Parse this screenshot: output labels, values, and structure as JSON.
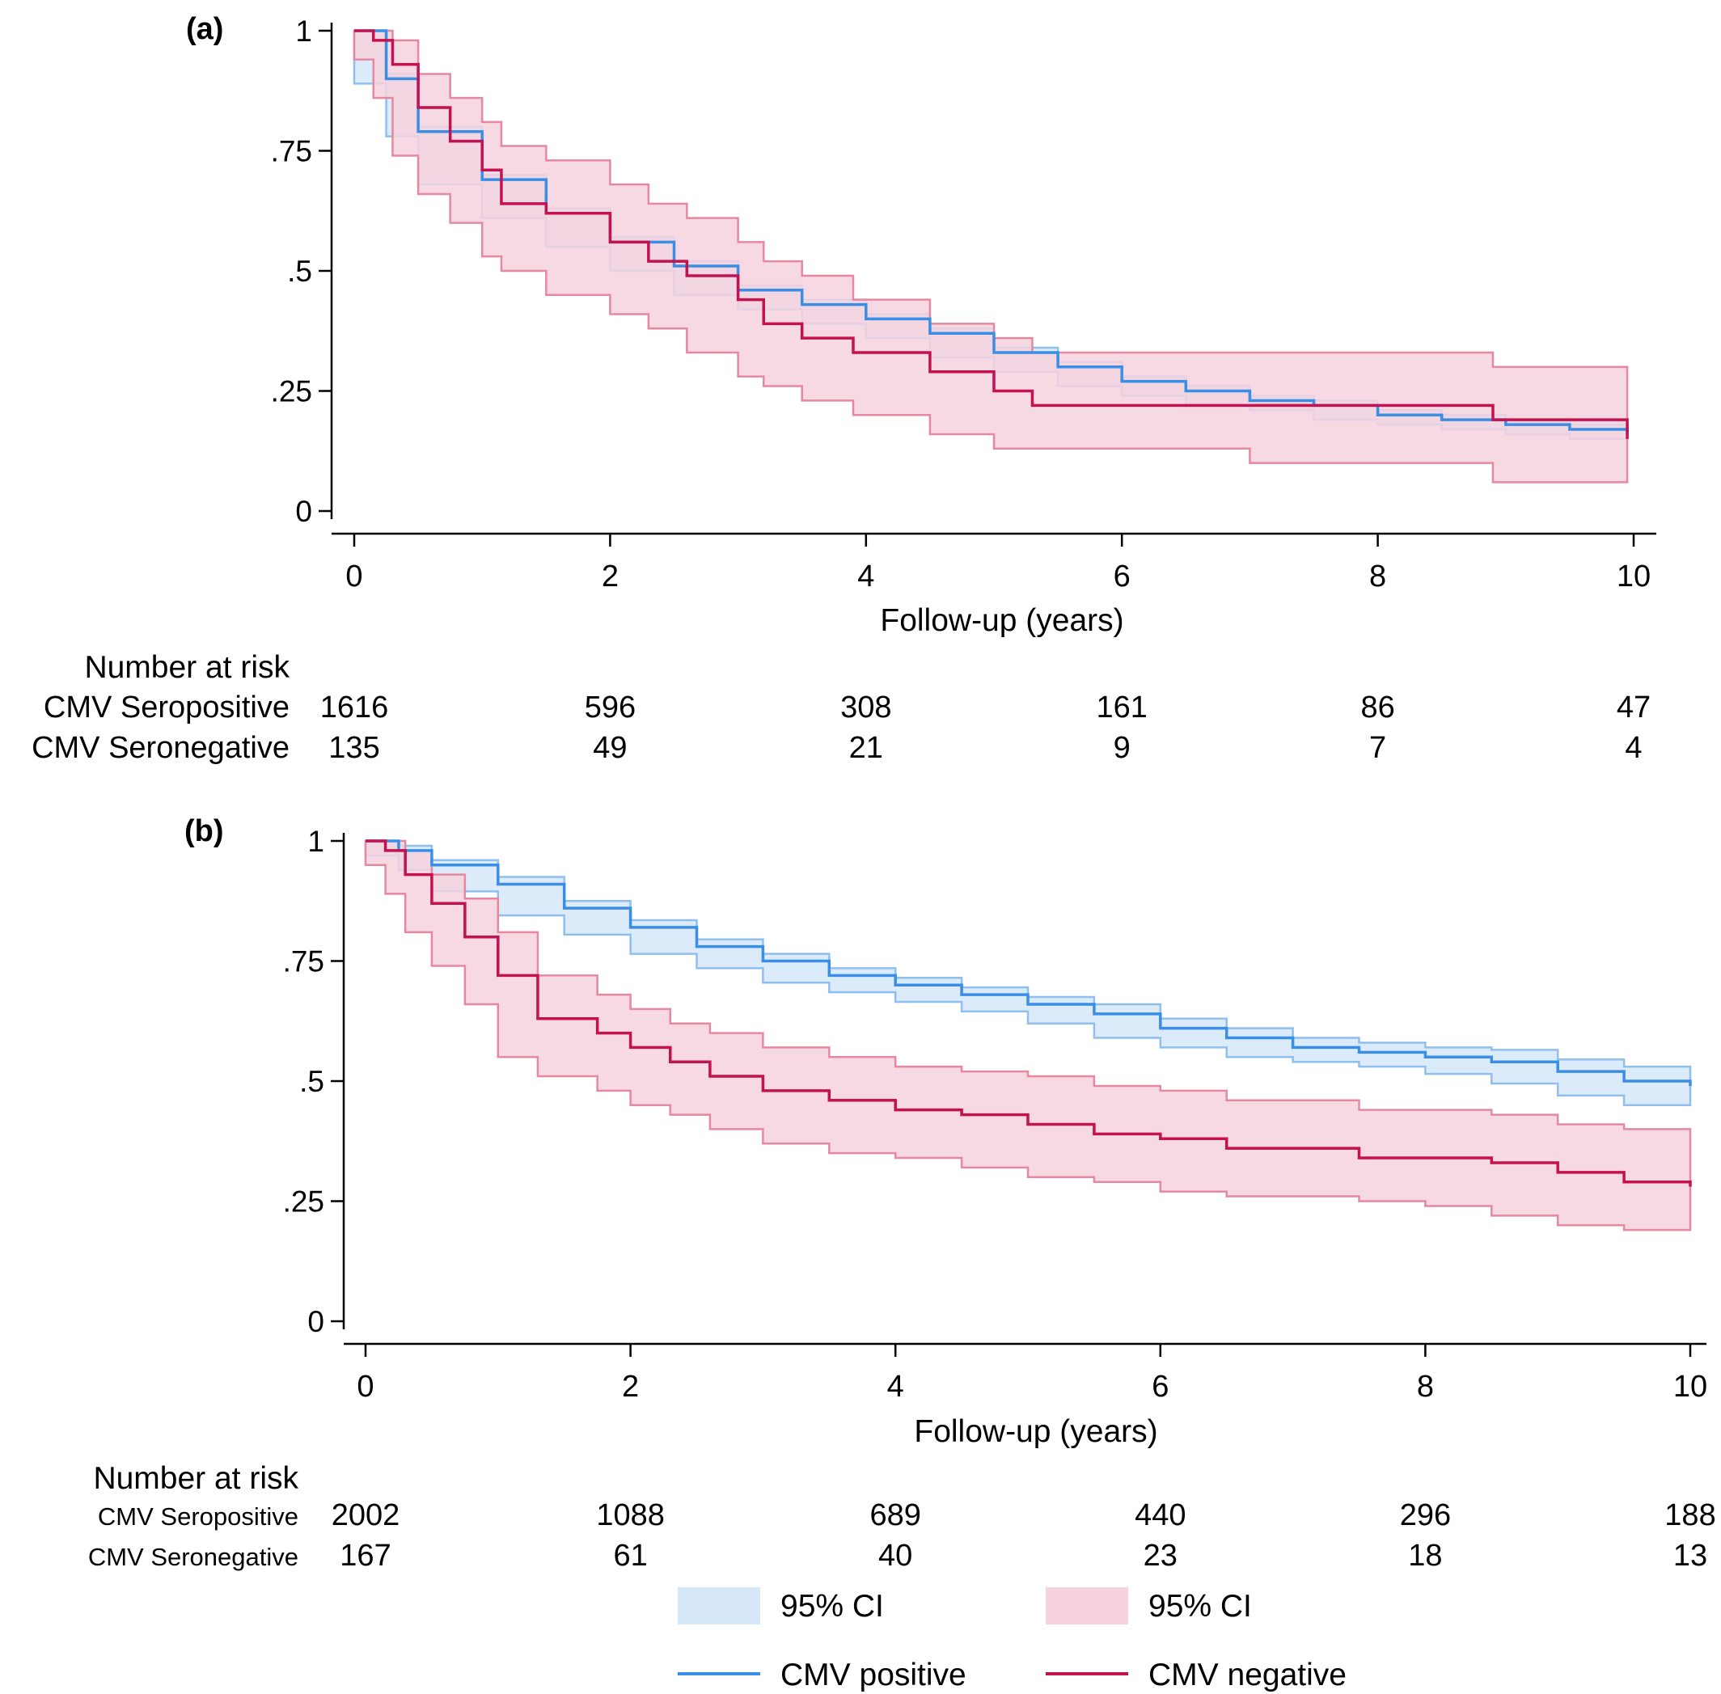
{
  "colors": {
    "pos_line": "#3a8ee6",
    "pos_ci_fill": "#d6e7f8",
    "pos_ci_edge": "#8fbfee",
    "neg_line": "#c4114f",
    "neg_ci_fill": "#f6d2de",
    "neg_ci_edge": "#e6889f"
  },
  "chart_data": [
    {
      "panel_label": "(a)",
      "type": "line",
      "xlabel": "Follow-up (years)",
      "xlim": [
        0,
        10
      ],
      "ylim": [
        0,
        1
      ],
      "xticks": [
        "0",
        "2",
        "4",
        "6",
        "8",
        "10"
      ],
      "yticks": [
        "0",
        ".25",
        ".5",
        ".75",
        "1"
      ],
      "risk_table": {
        "title": "Number at risk",
        "rows": [
          {
            "label": "CMV Seropositive",
            "values": [
              "1616",
              "596",
              "308",
              "161",
              "86",
              "47"
            ]
          },
          {
            "label": "CMV Seronegative",
            "values": [
              "135",
              "49",
              "21",
              "9",
              "7",
              "4"
            ]
          }
        ]
      },
      "series": [
        {
          "group": "positive",
          "x": [
            0,
            0.25,
            0.5,
            1.0,
            1.5,
            2.0,
            2.5,
            3.0,
            3.5,
            4.0,
            4.5,
            5.0,
            5.5,
            6.0,
            6.5,
            7.0,
            7.5,
            8.0,
            8.5,
            9.0,
            9.5,
            9.95
          ],
          "y": [
            1.0,
            0.9,
            0.79,
            0.69,
            0.62,
            0.56,
            0.51,
            0.46,
            0.43,
            0.4,
            0.37,
            0.33,
            0.3,
            0.27,
            0.25,
            0.23,
            0.22,
            0.2,
            0.19,
            0.18,
            0.17,
            0.16
          ],
          "ci_lower": [
            1.0,
            0.89,
            0.78,
            0.68,
            0.61,
            0.55,
            0.5,
            0.45,
            0.42,
            0.39,
            0.36,
            0.32,
            0.29,
            0.26,
            0.24,
            0.22,
            0.21,
            0.19,
            0.18,
            0.17,
            0.16,
            0.15
          ],
          "ci_upper": [
            1.0,
            0.91,
            0.8,
            0.7,
            0.63,
            0.57,
            0.52,
            0.47,
            0.44,
            0.41,
            0.38,
            0.34,
            0.31,
            0.28,
            0.26,
            0.24,
            0.23,
            0.21,
            0.2,
            0.19,
            0.18,
            0.17
          ]
        },
        {
          "group": "negative",
          "x": [
            0,
            0.15,
            0.3,
            0.5,
            0.75,
            1.0,
            1.15,
            1.5,
            2.0,
            2.3,
            2.6,
            3.0,
            3.2,
            3.5,
            3.9,
            4.5,
            5.0,
            5.3,
            7.0,
            8.9,
            9.95
          ],
          "y": [
            1.0,
            0.98,
            0.93,
            0.84,
            0.77,
            0.71,
            0.64,
            0.62,
            0.56,
            0.52,
            0.49,
            0.44,
            0.39,
            0.36,
            0.33,
            0.29,
            0.25,
            0.22,
            0.22,
            0.19,
            0.15
          ],
          "ci_lower": [
            1.0,
            0.94,
            0.86,
            0.74,
            0.66,
            0.6,
            0.53,
            0.5,
            0.45,
            0.41,
            0.38,
            0.33,
            0.28,
            0.26,
            0.23,
            0.2,
            0.16,
            0.13,
            0.13,
            0.1,
            0.06
          ],
          "ci_upper": [
            1.0,
            1.0,
            0.98,
            0.91,
            0.86,
            0.81,
            0.76,
            0.73,
            0.68,
            0.64,
            0.61,
            0.56,
            0.52,
            0.49,
            0.44,
            0.39,
            0.36,
            0.33,
            0.33,
            0.3,
            0.27
          ]
        }
      ]
    },
    {
      "panel_label": "(b)",
      "type": "line",
      "xlabel": "Follow-up (years)",
      "xlim": [
        0,
        10
      ],
      "ylim": [
        0,
        1
      ],
      "xticks": [
        "0",
        "2",
        "4",
        "6",
        "8",
        "10"
      ],
      "yticks": [
        "0",
        ".25",
        ".5",
        ".75",
        "1"
      ],
      "risk_table": {
        "title": "Number at risk",
        "rows": [
          {
            "label": "CMV Seropositive",
            "values": [
              "2002",
              "1088",
              "689",
              "440",
              "296",
              "188"
            ]
          },
          {
            "label": "CMV Seronegative",
            "values": [
              "167",
              "61",
              "40",
              "23",
              "18",
              "13"
            ]
          }
        ]
      },
      "series": [
        {
          "group": "positive",
          "x": [
            0,
            0.25,
            0.5,
            1.0,
            1.5,
            2.0,
            2.5,
            3.0,
            3.5,
            4.0,
            4.5,
            5.0,
            5.5,
            6.0,
            6.5,
            7.0,
            7.5,
            8.0,
            8.5,
            9.0,
            9.5,
            10.0
          ],
          "y": [
            1.0,
            0.98,
            0.95,
            0.91,
            0.86,
            0.82,
            0.78,
            0.75,
            0.72,
            0.7,
            0.68,
            0.66,
            0.64,
            0.61,
            0.59,
            0.57,
            0.56,
            0.55,
            0.54,
            0.52,
            0.5,
            0.49
          ],
          "ci_lower": [
            1.0,
            0.97,
            0.94,
            0.895,
            0.845,
            0.805,
            0.765,
            0.735,
            0.705,
            0.685,
            0.665,
            0.645,
            0.62,
            0.59,
            0.57,
            0.55,
            0.54,
            0.53,
            0.515,
            0.495,
            0.47,
            0.45
          ],
          "ci_upper": [
            1.0,
            0.99,
            0.96,
            0.925,
            0.875,
            0.835,
            0.795,
            0.765,
            0.735,
            0.715,
            0.695,
            0.675,
            0.66,
            0.63,
            0.61,
            0.59,
            0.58,
            0.57,
            0.565,
            0.545,
            0.53,
            0.52
          ]
        },
        {
          "group": "negative",
          "x": [
            0,
            0.15,
            0.3,
            0.5,
            0.75,
            1.0,
            1.3,
            1.75,
            2.0,
            2.3,
            2.6,
            3.0,
            3.5,
            4.0,
            4.5,
            5.0,
            5.5,
            6.0,
            6.5,
            7.5,
            8.0,
            8.5,
            9.0,
            9.5,
            10.0
          ],
          "y": [
            1.0,
            0.98,
            0.93,
            0.87,
            0.8,
            0.72,
            0.63,
            0.6,
            0.57,
            0.54,
            0.51,
            0.48,
            0.46,
            0.44,
            0.43,
            0.41,
            0.39,
            0.38,
            0.36,
            0.34,
            0.34,
            0.33,
            0.31,
            0.29,
            0.28
          ],
          "ci_lower": [
            1.0,
            0.95,
            0.89,
            0.81,
            0.74,
            0.66,
            0.55,
            0.51,
            0.48,
            0.45,
            0.43,
            0.4,
            0.37,
            0.35,
            0.34,
            0.32,
            0.3,
            0.29,
            0.27,
            0.26,
            0.25,
            0.24,
            0.22,
            0.2,
            0.19
          ],
          "ci_upper": [
            1.0,
            1.0,
            0.98,
            0.93,
            0.88,
            0.81,
            0.72,
            0.68,
            0.65,
            0.62,
            0.6,
            0.57,
            0.55,
            0.53,
            0.52,
            0.51,
            0.49,
            0.48,
            0.46,
            0.44,
            0.44,
            0.43,
            0.41,
            0.4,
            0.39
          ]
        }
      ]
    }
  ],
  "legend": {
    "items": [
      {
        "kind": "patch",
        "group": "positive",
        "label": "95% CI"
      },
      {
        "kind": "patch",
        "group": "negative",
        "label": "95% CI"
      },
      {
        "kind": "line",
        "group": "positive",
        "label": "CMV positive"
      },
      {
        "kind": "line",
        "group": "negative",
        "label": "CMV negative"
      }
    ]
  }
}
